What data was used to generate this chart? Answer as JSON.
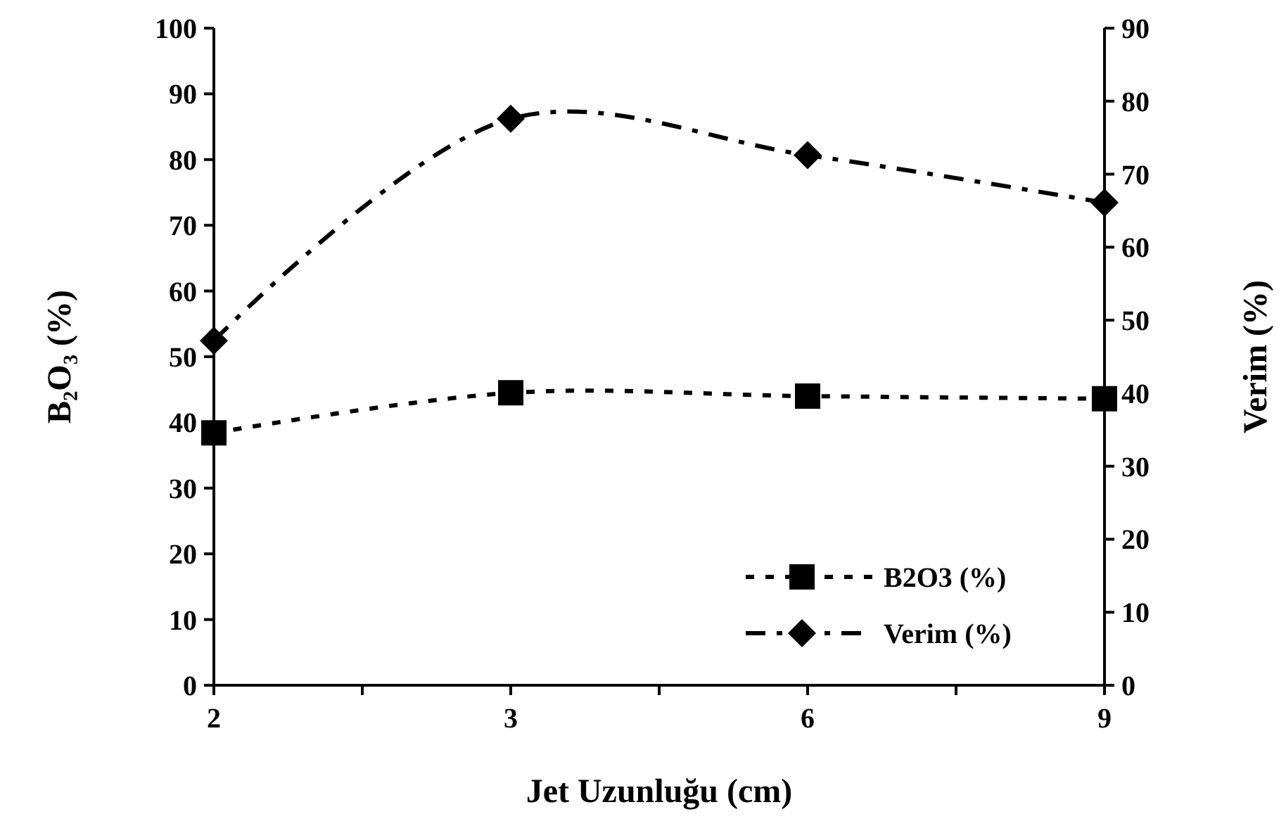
{
  "chart_data": {
    "type": "line",
    "xlabel": "Jet Uzunluğu (cm)",
    "ylabel": "B₂O₃ (%)",
    "y2label": "Verim (%)",
    "categories": [
      "2",
      "3",
      "6",
      "9"
    ],
    "series": [
      {
        "name": "B2O3 (%)",
        "color": "#000000",
        "values": [
          38.4,
          44.5,
          44,
          43.6
        ],
        "marker": "square",
        "line_style": "dotted"
      },
      {
        "name": "Verim (%)",
        "color": "#000000",
        "values": [
          47.2,
          77.6,
          72.6,
          66.1
        ],
        "marker": "diamond",
        "line_style": "dashed",
        "axis": "y2"
      }
    ],
    "ylim": [
      0,
      100
    ],
    "yticks": [
      0,
      10,
      20,
      30,
      40,
      50,
      60,
      70,
      80,
      90,
      100
    ],
    "y2lim": [
      0,
      90
    ],
    "y2ticks": [
      0,
      10,
      20,
      30,
      40,
      50,
      60,
      70,
      80,
      90
    ],
    "grid": false,
    "legend": "bottom right"
  }
}
